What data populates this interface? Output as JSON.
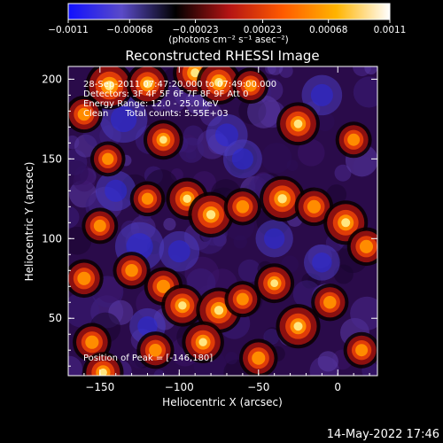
{
  "chart_data": {
    "type": "heatmap",
    "title": "Reconstructed RHESSI Image",
    "xlabel": "Heliocentric X (arcsec)",
    "ylabel": "Heliocentric Y (arcsec)",
    "xlim": [
      -170,
      25
    ],
    "ylim": [
      14,
      208
    ],
    "x_ticks": [
      -150,
      -100,
      -50,
      0
    ],
    "x_tick_labels": [
      "−150",
      "−100",
      "−50",
      "0"
    ],
    "y_ticks": [
      50,
      100,
      150,
      200
    ],
    "y_tick_labels": [
      "50",
      "100",
      "150",
      "200"
    ],
    "annotations": [
      "28-Sep-2011 07:47:20.000 to 07:49:00.000",
      "Detectors: 3F 4F 5F 6F 7F 8F 9F Att 0",
      "Energy Range: 12.0 - 25.0 keV",
      "Clean      Total counts: 5.55E+03"
    ],
    "peak_label": "Position of Peak = [-146,180]",
    "peak_position": [
      -146,
      180
    ],
    "colorbar": {
      "range": [
        -0.0011,
        0.0011
      ],
      "ticks": [
        -0.0011,
        -0.00068,
        -0.00023,
        0.00023,
        0.00068,
        0.0011
      ],
      "tick_labels": [
        "−0.0011",
        "−0.00068",
        "−0.00023",
        "0.00023",
        "0.00068",
        "0.0011"
      ],
      "unit_label": "(photons cm⁻² s⁻¹ asec⁻²)",
      "colors": [
        "#1010ff",
        "#5a4bc8",
        "#000000",
        "#b41414",
        "#ff5a00",
        "#ffb400",
        "#ffffff"
      ]
    },
    "grid": false,
    "hot_spots": [
      {
        "x": -144,
        "y": 196,
        "v": 1.0
      },
      {
        "x": -120,
        "y": 197,
        "v": 0.75
      },
      {
        "x": -90,
        "y": 204,
        "v": 0.85
      },
      {
        "x": -75,
        "y": 198,
        "v": 0.85
      },
      {
        "x": -55,
        "y": 196,
        "v": 0.5
      },
      {
        "x": -160,
        "y": 178,
        "v": 0.55
      },
      {
        "x": -110,
        "y": 162,
        "v": 0.65
      },
      {
        "x": -145,
        "y": 150,
        "v": 0.45
      },
      {
        "x": -25,
        "y": 172,
        "v": 0.8
      },
      {
        "x": 10,
        "y": 162,
        "v": 0.5
      },
      {
        "x": -95,
        "y": 125,
        "v": 0.75
      },
      {
        "x": -80,
        "y": 115,
        "v": 0.9
      },
      {
        "x": -60,
        "y": 120,
        "v": 0.55
      },
      {
        "x": -35,
        "y": 125,
        "v": 0.9
      },
      {
        "x": -15,
        "y": 120,
        "v": 0.6
      },
      {
        "x": 5,
        "y": 110,
        "v": 0.85
      },
      {
        "x": 18,
        "y": 95,
        "v": 0.6
      },
      {
        "x": -150,
        "y": 108,
        "v": 0.5
      },
      {
        "x": -160,
        "y": 75,
        "v": 0.6
      },
      {
        "x": -130,
        "y": 80,
        "v": 0.55
      },
      {
        "x": -110,
        "y": 70,
        "v": 0.6
      },
      {
        "x": -98,
        "y": 58,
        "v": 0.75
      },
      {
        "x": -75,
        "y": 55,
        "v": 0.9
      },
      {
        "x": -60,
        "y": 62,
        "v": 0.5
      },
      {
        "x": -40,
        "y": 72,
        "v": 0.65
      },
      {
        "x": -25,
        "y": 45,
        "v": 0.85
      },
      {
        "x": -5,
        "y": 60,
        "v": 0.55
      },
      {
        "x": 15,
        "y": 30,
        "v": 0.5
      },
      {
        "x": -155,
        "y": 35,
        "v": 0.6
      },
      {
        "x": -148,
        "y": 16,
        "v": 0.7
      },
      {
        "x": -115,
        "y": 30,
        "v": 0.55
      },
      {
        "x": -85,
        "y": 35,
        "v": 0.75
      },
      {
        "x": -50,
        "y": 25,
        "v": 0.6
      },
      {
        "x": -120,
        "y": 125,
        "v": 0.45
      }
    ],
    "cold_spots": [
      {
        "x": -135,
        "y": 175,
        "v": 0.8
      },
      {
        "x": -70,
        "y": 165,
        "v": 0.6
      },
      {
        "x": -140,
        "y": 130,
        "v": 0.55
      },
      {
        "x": -125,
        "y": 95,
        "v": 0.85
      },
      {
        "x": -100,
        "y": 92,
        "v": 0.55
      },
      {
        "x": -60,
        "y": 150,
        "v": 0.5
      },
      {
        "x": -10,
        "y": 190,
        "v": 0.55
      },
      {
        "x": -40,
        "y": 100,
        "v": 0.45
      },
      {
        "x": -120,
        "y": 45,
        "v": 0.4
      },
      {
        "x": -10,
        "y": 85,
        "v": 0.4
      }
    ]
  },
  "footer": {
    "timestamp": "14-May-2022 17:46"
  }
}
